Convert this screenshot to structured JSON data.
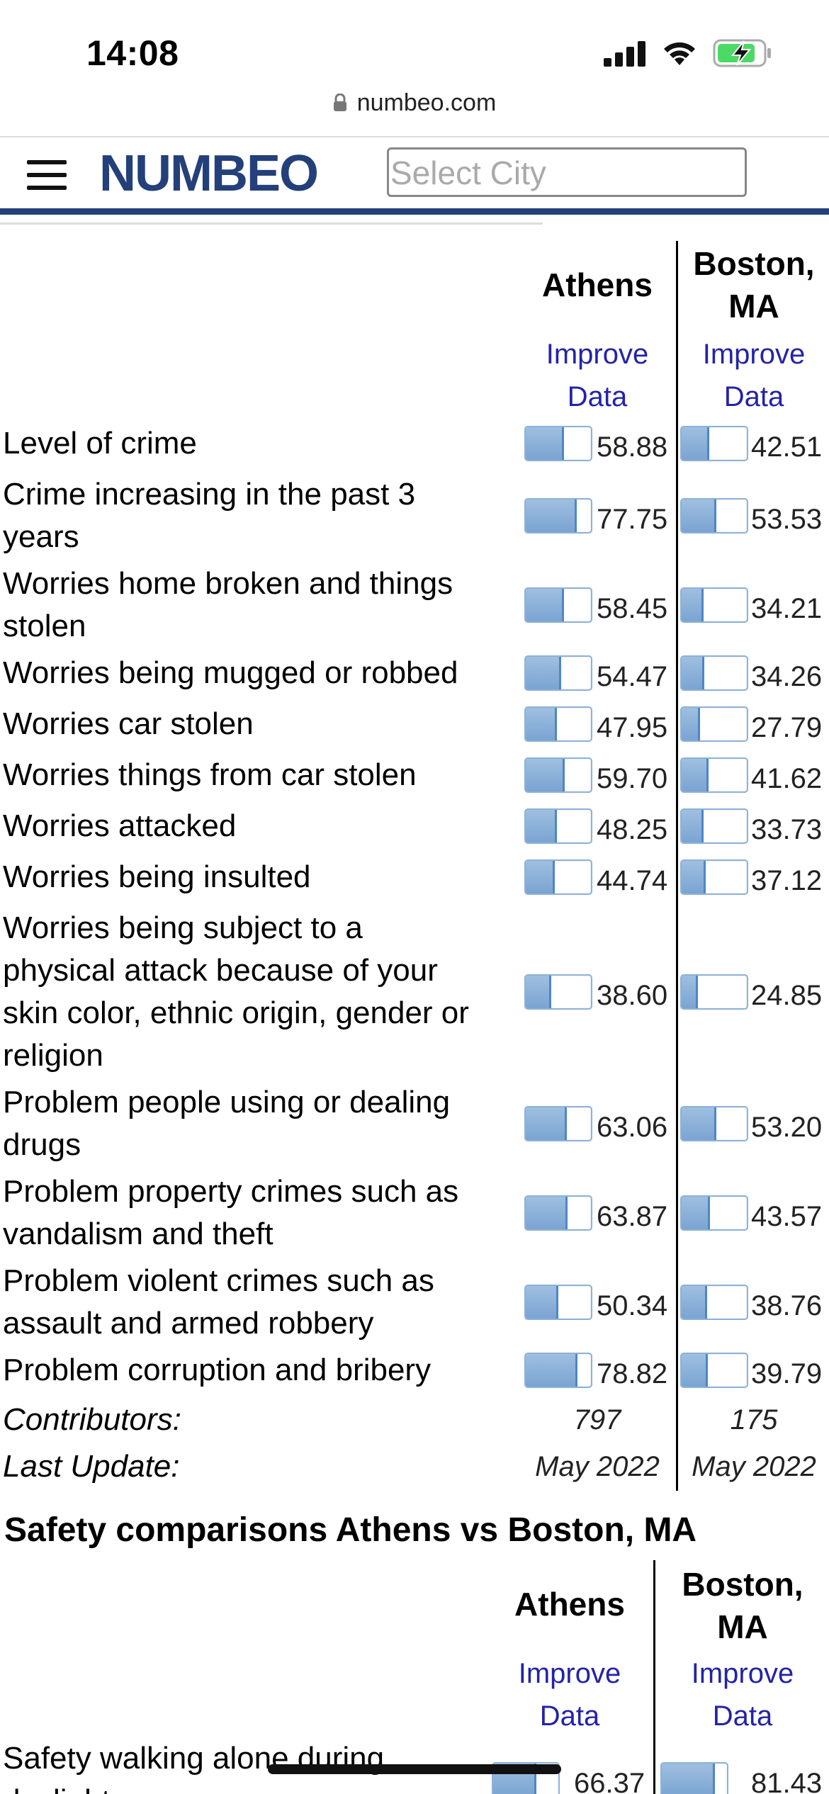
{
  "status": {
    "time": "14:08",
    "url": "numbeo.com"
  },
  "header": {
    "logo": "NUMBEO",
    "city_placeholder": "Select City"
  },
  "table1": {
    "cities": [
      {
        "name_line1": "Athens",
        "name_line2": "",
        "improve_line1": "Improve",
        "improve_line2": "Data"
      },
      {
        "name_line1": "Boston,",
        "name_line2": "MA",
        "improve_line1": "Improve",
        "improve_line2": "Data"
      }
    ],
    "rows": [
      {
        "label_lines": [
          "Level of crime"
        ],
        "athens": 58.88,
        "athens_text": "58.88",
        "boston": 42.51,
        "boston_text": "42.51"
      },
      {
        "label_lines": [
          "Crime increasing in the past 3",
          "years"
        ],
        "athens": 77.75,
        "athens_text": "77.75",
        "boston": 53.53,
        "boston_text": "53.53"
      },
      {
        "label_lines": [
          "Worries home broken and things",
          "stolen"
        ],
        "athens": 58.45,
        "athens_text": "58.45",
        "boston": 34.21,
        "boston_text": "34.21"
      },
      {
        "label_lines": [
          "Worries being mugged or robbed"
        ],
        "athens": 54.47,
        "athens_text": "54.47",
        "boston": 34.26,
        "boston_text": "34.26"
      },
      {
        "label_lines": [
          "Worries car stolen"
        ],
        "athens": 47.95,
        "athens_text": "47.95",
        "boston": 27.79,
        "boston_text": "27.79"
      },
      {
        "label_lines": [
          "Worries things from car stolen"
        ],
        "athens": 59.7,
        "athens_text": "59.70",
        "boston": 41.62,
        "boston_text": "41.62"
      },
      {
        "label_lines": [
          "Worries attacked"
        ],
        "athens": 48.25,
        "athens_text": "48.25",
        "boston": 33.73,
        "boston_text": "33.73"
      },
      {
        "label_lines": [
          "Worries being insulted"
        ],
        "athens": 44.74,
        "athens_text": "44.74",
        "boston": 37.12,
        "boston_text": "37.12"
      },
      {
        "label_lines": [
          "Worries being subject to a",
          "physical attack because of your",
          "skin color, ethnic origin, gender or",
          "religion"
        ],
        "athens": 38.6,
        "athens_text": "38.60",
        "boston": 24.85,
        "boston_text": "24.85"
      },
      {
        "label_lines": [
          "Problem people using or dealing",
          "drugs"
        ],
        "athens": 63.06,
        "athens_text": "63.06",
        "boston": 53.2,
        "boston_text": "53.20"
      },
      {
        "label_lines": [
          "Problem property crimes such as",
          "vandalism and theft"
        ],
        "athens": 63.87,
        "athens_text": "63.87",
        "boston": 43.57,
        "boston_text": "43.57"
      },
      {
        "label_lines": [
          "Problem violent crimes such as",
          "assault and armed robbery"
        ],
        "athens": 50.34,
        "athens_text": "50.34",
        "boston": 38.76,
        "boston_text": "38.76"
      },
      {
        "label_lines": [
          "Problem corruption and bribery"
        ],
        "athens": 78.82,
        "athens_text": "78.82",
        "boston": 39.79,
        "boston_text": "39.79"
      }
    ],
    "contributors_label": "Contributors:",
    "contributors": [
      "797",
      "175"
    ],
    "last_update_label": "Last Update:",
    "last_update": [
      "May 2022",
      "May 2022"
    ]
  },
  "table2": {
    "title": "Safety comparisons Athens vs Boston, MA",
    "cities": [
      {
        "name_line1": "Athens",
        "name_line2": "",
        "improve_line1": "Improve",
        "improve_line2": "Data"
      },
      {
        "name_line1": "Boston,",
        "name_line2": "MA",
        "improve_line1": "Improve",
        "improve_line2": "Data"
      }
    ],
    "rows": [
      {
        "label_lines": [
          "Safety walking alone during",
          "daylight"
        ],
        "athens": 66.37,
        "athens_text": "66.37",
        "boston": 81.43,
        "boston_text": "81.43"
      }
    ]
  }
}
